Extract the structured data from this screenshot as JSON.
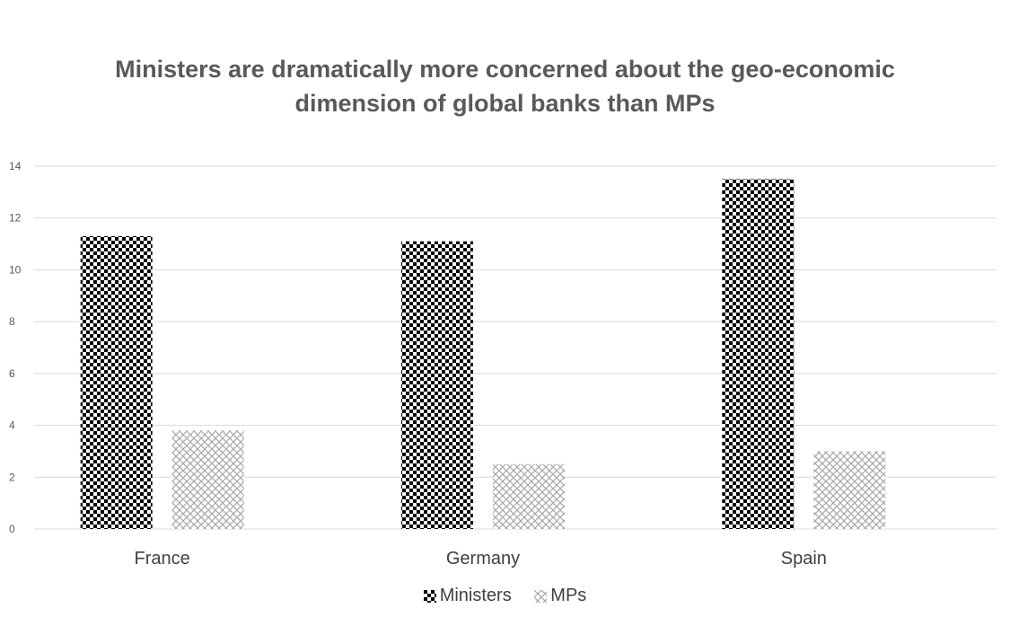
{
  "chart_data": {
    "type": "bar",
    "title_lines": [
      "Ministers are dramatically more concerned about the geo-economic",
      "dimension of global banks than MPs"
    ],
    "categories": [
      "France",
      "Germany",
      "Spain"
    ],
    "series": [
      {
        "name": "Ministers",
        "values": [
          11.3,
          11.1,
          13.5
        ],
        "pattern": "checkerboard",
        "color": "#000000"
      },
      {
        "name": "MPs",
        "values": [
          3.8,
          2.5,
          3.0
        ],
        "pattern": "crosshatch",
        "color": "#b0b0b0"
      }
    ],
    "yticks": [
      "0",
      "2",
      "4",
      "6",
      "8",
      "10",
      "12",
      "14"
    ],
    "ylim": [
      0,
      14
    ],
    "grid": true,
    "legend_position": "bottom"
  }
}
